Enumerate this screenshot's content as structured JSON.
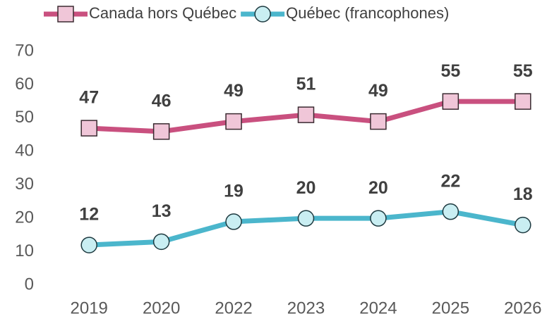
{
  "chart_data": {
    "type": "line",
    "categories": [
      "2019",
      "2020",
      "2022",
      "2023",
      "2024",
      "2025",
      "2026"
    ],
    "series": [
      {
        "name": "Canada hors Québec",
        "color": "#c9507f",
        "marker_fill": "#f0c6d8",
        "marker": "square",
        "values": [
          47,
          46,
          49,
          51,
          49,
          55,
          55
        ]
      },
      {
        "name": "Québec (francophones)",
        "color": "#4bb6cc",
        "marker_fill": "#c9eef2",
        "marker": "circle",
        "values": [
          12,
          13,
          19,
          20,
          20,
          22,
          18
        ]
      }
    ],
    "ylim": [
      0,
      70
    ],
    "yticks": [
      0,
      10,
      20,
      30,
      40,
      50,
      60,
      70
    ],
    "grid": false,
    "legend": "top"
  }
}
